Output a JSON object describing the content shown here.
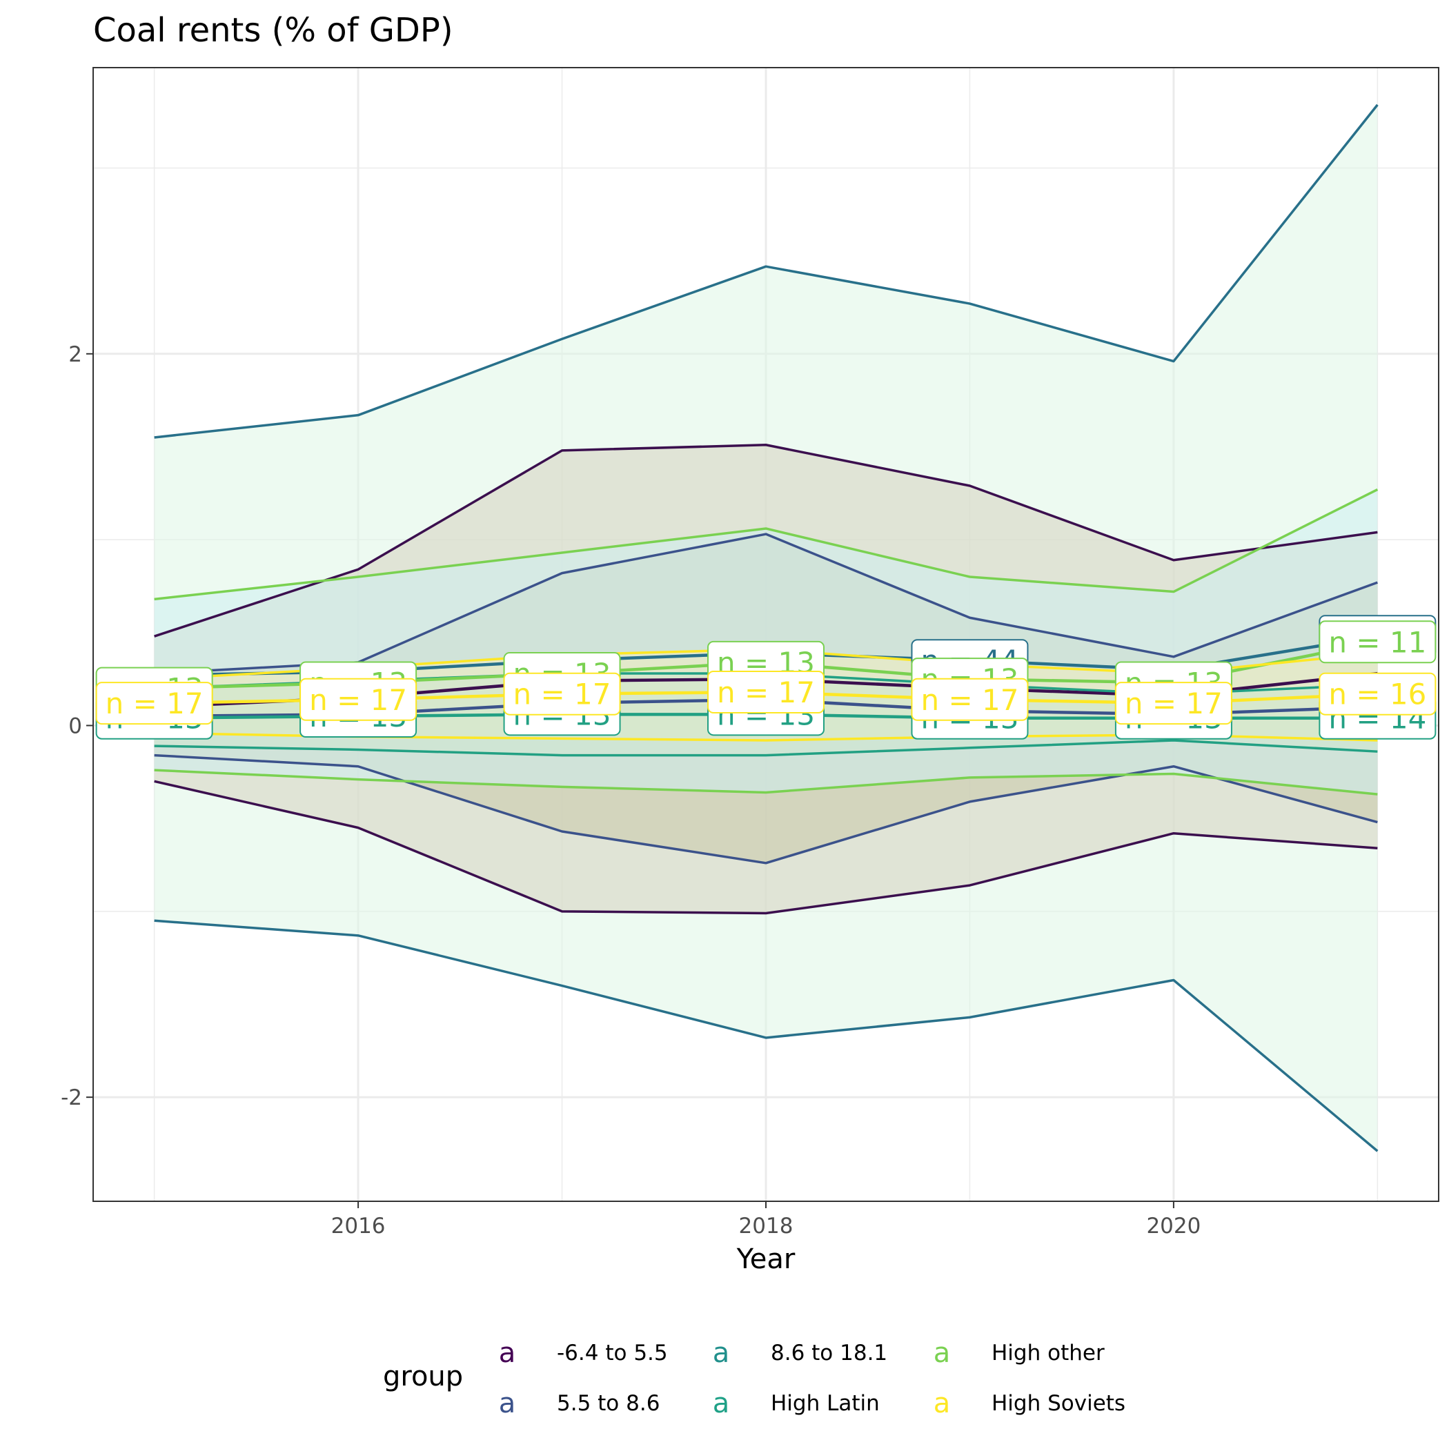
{
  "chart_data": {
    "type": "line",
    "title": "Coal rents (% of GDP)",
    "xlabel": "Year",
    "ylabel": "",
    "xlim": [
      2014.7,
      2021.3
    ],
    "ylim": [
      -2.56,
      3.54
    ],
    "x_ticks": [
      2016,
      2018,
      2020
    ],
    "y_ticks": [
      -2,
      0,
      2
    ],
    "y_tick_labels": [
      "-2",
      "0",
      "2"
    ],
    "grid": true,
    "legend": {
      "title": "group",
      "position": "bottom",
      "key_glyph": "a"
    },
    "x": [
      2015,
      2016,
      2017,
      2018,
      2019,
      2020,
      2021
    ],
    "series": [
      {
        "name": "-6.4 to 5.5",
        "color": "#440154",
        "line_color": "#3b0f4e",
        "fill": "#d6d2c0",
        "mean": [
          0.1,
          0.15,
          0.24,
          0.25,
          0.2,
          0.16,
          0.28
        ],
        "upper": [
          0.48,
          0.84,
          1.48,
          1.51,
          1.29,
          0.89,
          1.04
        ],
        "lower": [
          -0.3,
          -0.55,
          -1.0,
          -1.01,
          -0.86,
          -0.58,
          -0.66
        ],
        "n_labels": [
          "",
          "",
          "",
          "",
          "",
          "",
          ""
        ]
      },
      {
        "name": "5.5 to 8.6",
        "color": "#3b528b",
        "line_color": "#3b528b",
        "fill": "#c9c8a9",
        "mean": [
          0.05,
          0.06,
          0.12,
          0.14,
          0.08,
          0.06,
          0.1
        ],
        "upper": [
          0.28,
          0.34,
          0.82,
          1.03,
          0.58,
          0.37,
          0.77
        ],
        "lower": [
          -0.16,
          -0.22,
          -0.57,
          -0.74,
          -0.41,
          -0.22,
          -0.52
        ],
        "n_labels": [
          "",
          "",
          "",
          "",
          "",
          "",
          ""
        ]
      },
      {
        "name": "8.6 to 18.1",
        "color": "#21908c",
        "line_color": "#28708a",
        "fill": "#dff5e5",
        "mean": [
          0.27,
          0.29,
          0.35,
          0.39,
          0.35,
          0.3,
          0.48
        ],
        "upper": [
          1.55,
          1.67,
          2.08,
          2.47,
          2.27,
          1.96,
          3.34
        ],
        "lower": [
          -1.05,
          -1.13,
          -1.4,
          -1.68,
          -1.57,
          -1.37,
          -2.29
        ],
        "n_labels": [
          "",
          "",
          "",
          "",
          "44",
          "",
          "37"
        ]
      },
      {
        "name": "High Latin",
        "color": "#1fa187",
        "line_color": "#22a083",
        "fill": "#cde8d0",
        "mean": [
          0.04,
          0.05,
          0.06,
          0.06,
          0.04,
          0.04,
          0.04
        ],
        "upper": [
          0.2,
          0.24,
          0.28,
          0.28,
          0.22,
          0.17,
          0.22
        ],
        "lower": [
          -0.11,
          -0.13,
          -0.16,
          -0.16,
          -0.12,
          -0.08,
          -0.14
        ],
        "n_labels": [
          "13",
          "13",
          "13",
          "13",
          "13",
          "13",
          "14"
        ]
      },
      {
        "name": "High other",
        "color": "#7ad151",
        "line_color": "#7ad151",
        "fill": "#cdeef0",
        "mean": [
          0.2,
          0.23,
          0.28,
          0.34,
          0.25,
          0.23,
          0.45
        ],
        "upper": [
          0.68,
          0.8,
          0.93,
          1.06,
          0.8,
          0.72,
          1.27
        ],
        "lower": [
          -0.24,
          -0.29,
          -0.33,
          -0.36,
          -0.28,
          -0.26,
          -0.37
        ],
        "n_labels": [
          "13",
          "13",
          "13",
          "13",
          "13",
          "13",
          "11"
        ]
      },
      {
        "name": "High Soviets",
        "color": "#fde725",
        "line_color": "#fde725",
        "fill": "#f2eebd",
        "mean": [
          0.12,
          0.14,
          0.17,
          0.18,
          0.14,
          0.12,
          0.17
        ],
        "upper": [
          0.25,
          0.31,
          0.38,
          0.41,
          0.33,
          0.28,
          0.39
        ],
        "lower": [
          -0.04,
          -0.06,
          -0.07,
          -0.08,
          -0.06,
          -0.05,
          -0.08
        ],
        "n_labels": [
          "17",
          "17",
          "17",
          "17",
          "17",
          "17",
          "16"
        ]
      }
    ]
  }
}
